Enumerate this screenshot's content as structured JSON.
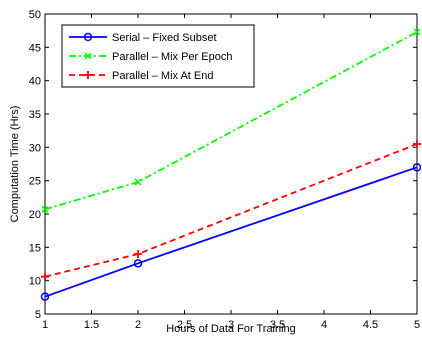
{
  "chart_data": {
    "type": "line",
    "xlabel": "Hours of Data For Training",
    "ylabel": "Computation Time (Hrs)",
    "xlim": [
      1,
      5
    ],
    "ylim": [
      5,
      50
    ],
    "xticks": [
      1,
      1.5,
      2,
      2.5,
      3,
      3.5,
      4,
      4.5,
      5
    ],
    "yticks": [
      5,
      10,
      15,
      20,
      25,
      30,
      35,
      40,
      45,
      50
    ],
    "grid": false,
    "legend_position": "top-left",
    "x": [
      1,
      2,
      5
    ],
    "series": [
      {
        "name": "Serial – Fixed Subset",
        "values": [
          7.6,
          12.6,
          27.0
        ],
        "color": "#0000ff",
        "style": "solid",
        "marker": "circle"
      },
      {
        "name": "Parallel – Mix Per Epoch",
        "values": [
          20.7,
          24.8,
          47.3
        ],
        "color": "#00ff00",
        "style": "dashdot",
        "marker": "x"
      },
      {
        "name": "Parallel – Mix At End",
        "values": [
          10.6,
          14.0,
          30.5
        ],
        "color": "#ff0000",
        "style": "dashed",
        "marker": "plus"
      }
    ]
  }
}
